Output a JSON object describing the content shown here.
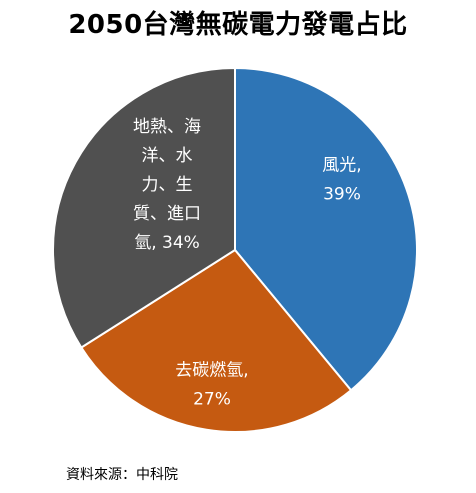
{
  "title": "2050台灣無碳電力發電占比",
  "source": "資料來源：中科院",
  "chart_data": {
    "type": "pie",
    "title": "2050台灣無碳電力發電占比",
    "slices": [
      {
        "label": "風光",
        "value": 39,
        "color": "#2e75b6",
        "label_lines": [
          "風光,",
          "39%"
        ]
      },
      {
        "label": "去碳燃氫",
        "value": 27,
        "color": "#c55a11",
        "label_lines": [
          "去碳燃氫,",
          "27%"
        ]
      },
      {
        "label": "地熱、海洋、水力、生質、進口氫",
        "value": 34,
        "color": "#505050",
        "label_lines": [
          "地熱、海",
          "洋、水",
          "力、生",
          "質、進口",
          "氫, 34%"
        ]
      }
    ]
  }
}
